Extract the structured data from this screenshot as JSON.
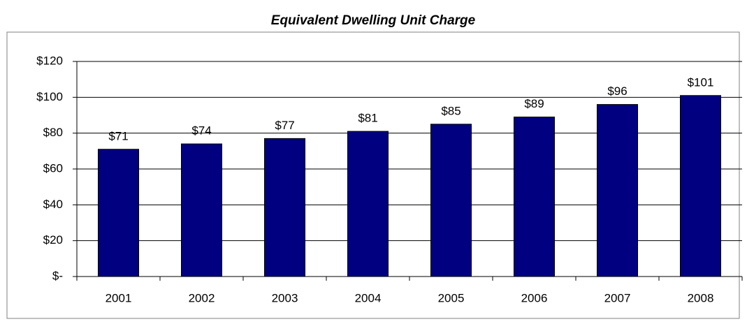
{
  "chart_data": {
    "type": "bar",
    "title": "Equivalent Dwelling Unit Charge",
    "categories": [
      "2001",
      "2002",
      "2003",
      "2004",
      "2005",
      "2006",
      "2007",
      "2008"
    ],
    "values": [
      71,
      74,
      77,
      81,
      85,
      89,
      96,
      101
    ],
    "value_labels": [
      "$71",
      "$74",
      "$77",
      "$81",
      "$85",
      "$89",
      "$96",
      "$101"
    ],
    "color": "#000080",
    "ylim": [
      0,
      120
    ],
    "yticks": [
      {
        "value": 0,
        "label": "$-"
      },
      {
        "value": 20,
        "label": "$20"
      },
      {
        "value": 40,
        "label": "$40"
      },
      {
        "value": 60,
        "label": "$60"
      },
      {
        "value": 80,
        "label": "$80"
      },
      {
        "value": 100,
        "label": "$100"
      },
      {
        "value": 120,
        "label": "$120"
      }
    ],
    "grid": true
  }
}
